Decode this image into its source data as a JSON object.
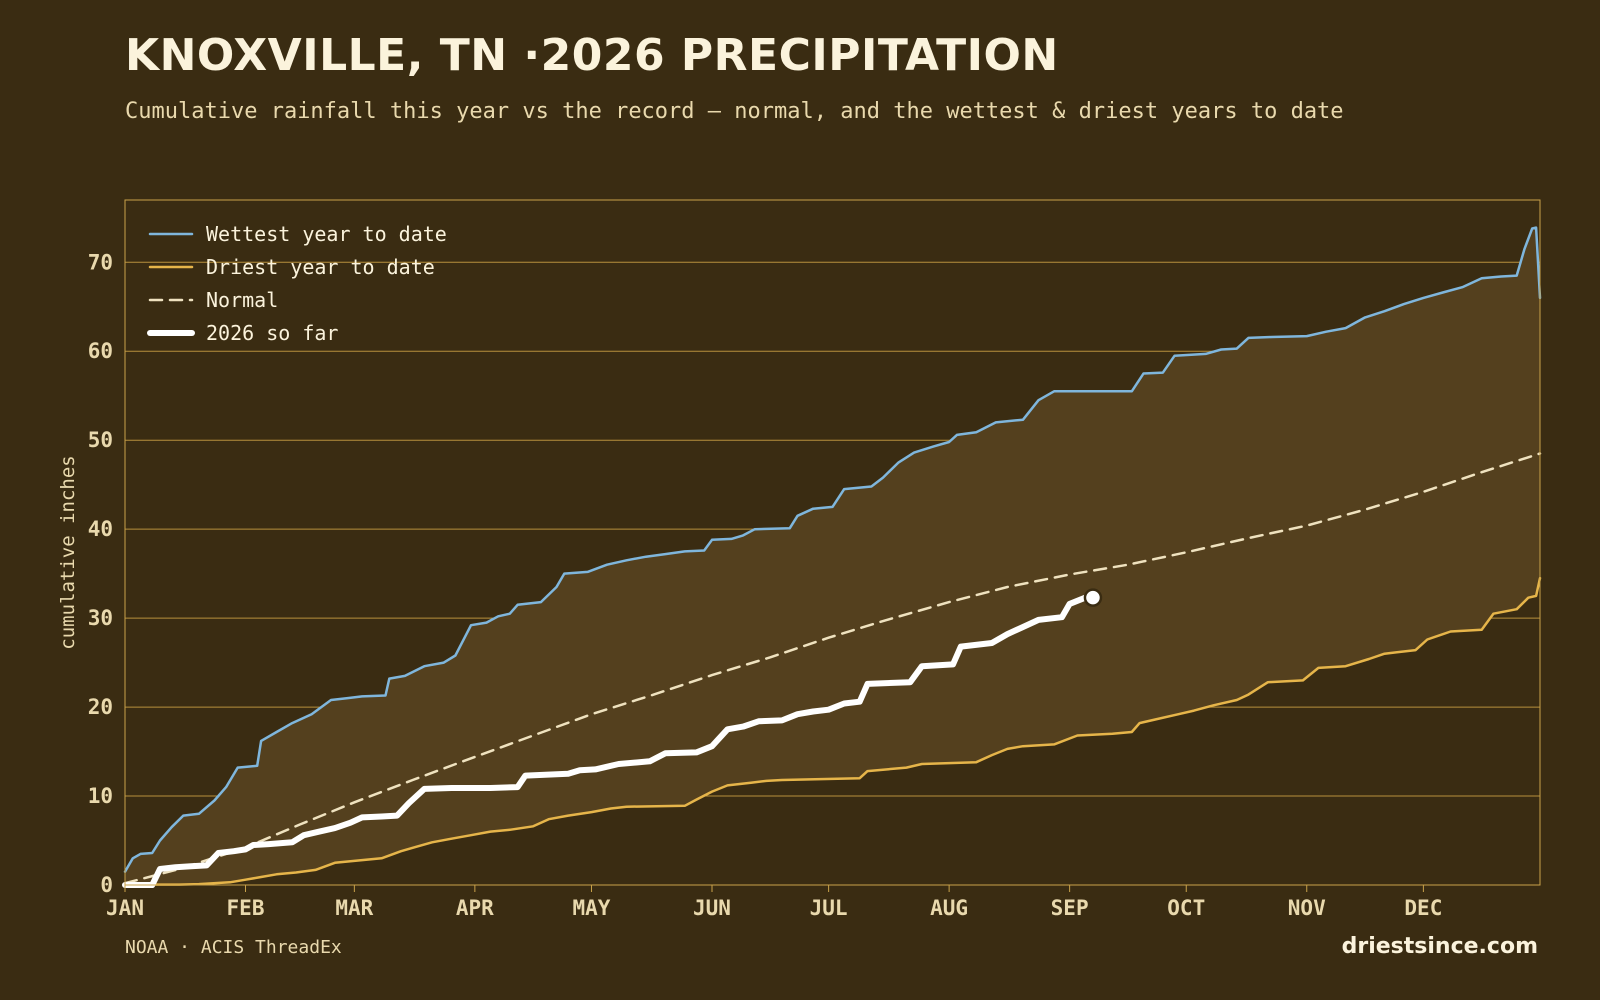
{
  "header": {
    "title": "KNOXVILLE, TN ·2026 PRECIPITATION",
    "subtitle": "Cumulative rainfall this year vs the record — normal, and the wettest & driest years to date"
  },
  "footer": {
    "source": "NOAA · ACIS ThreadEx",
    "brand": "driestsince.com"
  },
  "colors": {
    "background": "#3a2c12",
    "band_fill": "#54401e",
    "frame": "#c9a24a",
    "grid": "#b8903c",
    "wettest": "#7fb6dc",
    "driest": "#e6b54a",
    "normal": "#efe2bf",
    "current": "#ffffff"
  },
  "chart_data": {
    "type": "line",
    "xlabel": "",
    "ylabel": "cumulative inches",
    "x_unit": "day of year",
    "xlim": [
      1,
      365
    ],
    "ylim": [
      0,
      77
    ],
    "yticks": [
      0,
      10,
      20,
      30,
      40,
      50,
      60,
      70
    ],
    "months": [
      {
        "label": "JAN",
        "day": 1
      },
      {
        "label": "FEB",
        "day": 32
      },
      {
        "label": "MAR",
        "day": 60
      },
      {
        "label": "APR",
        "day": 91
      },
      {
        "label": "MAY",
        "day": 121
      },
      {
        "label": "JUN",
        "day": 152
      },
      {
        "label": "JUL",
        "day": 182
      },
      {
        "label": "AUG",
        "day": 213
      },
      {
        "label": "SEP",
        "day": 244
      },
      {
        "label": "OCT",
        "day": 274
      },
      {
        "label": "NOV",
        "day": 305
      },
      {
        "label": "DEC",
        "day": 335
      }
    ],
    "grid": true,
    "legend_position": "top-left",
    "series": [
      {
        "name": "Wettest year to date",
        "style": "solid",
        "points": [
          [
            1,
            1.5
          ],
          [
            3,
            3
          ],
          [
            5,
            3.5
          ],
          [
            8,
            3.6
          ],
          [
            10,
            5
          ],
          [
            13,
            6.5
          ],
          [
            16,
            7.8
          ],
          [
            20,
            8
          ],
          [
            24,
            9.5
          ],
          [
            27,
            11
          ],
          [
            30,
            13.2
          ],
          [
            35,
            13.4
          ],
          [
            36,
            16.2
          ],
          [
            40,
            17.2
          ],
          [
            44,
            18.2
          ],
          [
            49,
            19.2
          ],
          [
            54,
            20.8
          ],
          [
            58,
            21.0
          ],
          [
            62,
            21.2
          ],
          [
            68,
            21.3
          ],
          [
            69,
            23.2
          ],
          [
            73,
            23.5
          ],
          [
            78,
            24.6
          ],
          [
            83,
            25.0
          ],
          [
            86,
            25.8
          ],
          [
            90,
            29.2
          ],
          [
            94,
            29.5
          ],
          [
            97,
            30.2
          ],
          [
            100,
            30.5
          ],
          [
            102,
            31.5
          ],
          [
            108,
            31.8
          ],
          [
            112,
            33.5
          ],
          [
            114,
            35.0
          ],
          [
            120,
            35.2
          ],
          [
            125,
            36.0
          ],
          [
            130,
            36.5
          ],
          [
            135,
            36.9
          ],
          [
            140,
            37.2
          ],
          [
            145,
            37.5
          ],
          [
            150,
            37.6
          ],
          [
            152,
            38.8
          ],
          [
            157,
            38.9
          ],
          [
            160,
            39.3
          ],
          [
            163,
            40.0
          ],
          [
            172,
            40.1
          ],
          [
            174,
            41.5
          ],
          [
            178,
            42.3
          ],
          [
            183,
            42.5
          ],
          [
            186,
            44.5
          ],
          [
            193,
            44.8
          ],
          [
            196,
            45.8
          ],
          [
            200,
            47.5
          ],
          [
            204,
            48.6
          ],
          [
            209,
            49.3
          ],
          [
            213,
            49.8
          ],
          [
            215,
            50.6
          ],
          [
            220,
            50.9
          ],
          [
            225,
            52.0
          ],
          [
            232,
            52.3
          ],
          [
            236,
            54.5
          ],
          [
            240,
            55.5
          ],
          [
            260,
            55.5
          ],
          [
            263,
            57.5
          ],
          [
            268,
            57.6
          ],
          [
            271,
            59.5
          ],
          [
            279,
            59.7
          ],
          [
            283,
            60.2
          ],
          [
            287,
            60.3
          ],
          [
            290,
            61.5
          ],
          [
            296,
            61.6
          ],
          [
            305,
            61.7
          ],
          [
            310,
            62.2
          ],
          [
            315,
            62.6
          ],
          [
            320,
            63.8
          ],
          [
            325,
            64.5
          ],
          [
            330,
            65.3
          ],
          [
            335,
            66.0
          ],
          [
            340,
            66.6
          ],
          [
            345,
            67.2
          ],
          [
            350,
            68.2
          ],
          [
            355,
            68.4
          ],
          [
            359,
            68.5
          ],
          [
            361,
            71.5
          ],
          [
            363,
            73.8
          ],
          [
            364,
            73.9
          ],
          [
            365,
            66.0
          ]
        ]
      },
      {
        "name": "Driest year to date",
        "style": "solid",
        "points": [
          [
            1,
            0.05
          ],
          [
            15,
            0.05
          ],
          [
            20,
            0.1
          ],
          [
            28,
            0.3
          ],
          [
            32,
            0.6
          ],
          [
            36,
            0.9
          ],
          [
            40,
            1.2
          ],
          [
            45,
            1.4
          ],
          [
            50,
            1.7
          ],
          [
            55,
            2.5
          ],
          [
            62,
            2.8
          ],
          [
            67,
            3.0
          ],
          [
            72,
            3.8
          ],
          [
            76,
            4.3
          ],
          [
            80,
            4.8
          ],
          [
            85,
            5.2
          ],
          [
            90,
            5.6
          ],
          [
            95,
            6.0
          ],
          [
            100,
            6.2
          ],
          [
            106,
            6.6
          ],
          [
            110,
            7.4
          ],
          [
            115,
            7.8
          ],
          [
            121,
            8.2
          ],
          [
            126,
            8.6
          ],
          [
            130,
            8.8
          ],
          [
            145,
            8.9
          ],
          [
            148,
            9.6
          ],
          [
            152,
            10.5
          ],
          [
            156,
            11.2
          ],
          [
            162,
            11.5
          ],
          [
            166,
            11.7
          ],
          [
            170,
            11.8
          ],
          [
            180,
            11.9
          ],
          [
            190,
            12.0
          ],
          [
            192,
            12.8
          ],
          [
            202,
            13.2
          ],
          [
            206,
            13.6
          ],
          [
            220,
            13.8
          ],
          [
            224,
            14.6
          ],
          [
            228,
            15.3
          ],
          [
            232,
            15.6
          ],
          [
            240,
            15.8
          ],
          [
            246,
            16.8
          ],
          [
            255,
            17.0
          ],
          [
            260,
            17.2
          ],
          [
            262,
            18.2
          ],
          [
            266,
            18.6
          ],
          [
            272,
            19.2
          ],
          [
            276,
            19.6
          ],
          [
            281,
            20.2
          ],
          [
            287,
            20.8
          ],
          [
            290,
            21.4
          ],
          [
            295,
            22.8
          ],
          [
            304,
            23.0
          ],
          [
            308,
            24.4
          ],
          [
            315,
            24.6
          ],
          [
            321,
            25.4
          ],
          [
            325,
            26.0
          ],
          [
            333,
            26.4
          ],
          [
            336,
            27.6
          ],
          [
            342,
            28.5
          ],
          [
            350,
            28.7
          ],
          [
            353,
            30.5
          ],
          [
            359,
            31.0
          ],
          [
            362,
            32.3
          ],
          [
            364,
            32.5
          ],
          [
            365,
            34.5
          ]
        ]
      },
      {
        "name": "Normal",
        "style": "dashed",
        "points": [
          [
            1,
            0.2
          ],
          [
            15,
            1.8
          ],
          [
            32,
            4.2
          ],
          [
            46,
            6.8
          ],
          [
            60,
            9.3
          ],
          [
            75,
            11.8
          ],
          [
            91,
            14.4
          ],
          [
            106,
            16.8
          ],
          [
            121,
            19.2
          ],
          [
            137,
            21.4
          ],
          [
            152,
            23.6
          ],
          [
            167,
            25.6
          ],
          [
            182,
            27.8
          ],
          [
            197,
            29.8
          ],
          [
            213,
            31.8
          ],
          [
            228,
            33.5
          ],
          [
            244,
            34.9
          ],
          [
            259,
            36.0
          ],
          [
            274,
            37.4
          ],
          [
            290,
            39.0
          ],
          [
            305,
            40.4
          ],
          [
            320,
            42.2
          ],
          [
            335,
            44.2
          ],
          [
            350,
            46.4
          ],
          [
            365,
            48.5
          ]
        ]
      },
      {
        "name": "2026 so far",
        "style": "thick",
        "points": [
          [
            1,
            0
          ],
          [
            8,
            0
          ],
          [
            10,
            1.8
          ],
          [
            14,
            2.0
          ],
          [
            18,
            2.1
          ],
          [
            22,
            2.2
          ],
          [
            25,
            3.6
          ],
          [
            29,
            3.8
          ],
          [
            32,
            4.0
          ],
          [
            34,
            4.5
          ],
          [
            38,
            4.6
          ],
          [
            44,
            4.8
          ],
          [
            47,
            5.6
          ],
          [
            51,
            6.0
          ],
          [
            55,
            6.4
          ],
          [
            59,
            7.0
          ],
          [
            62,
            7.6
          ],
          [
            67,
            7.7
          ],
          [
            71,
            7.8
          ],
          [
            74,
            9.2
          ],
          [
            78,
            10.8
          ],
          [
            85,
            10.9
          ],
          [
            95,
            10.9
          ],
          [
            102,
            11.0
          ],
          [
            104,
            12.3
          ],
          [
            115,
            12.5
          ],
          [
            118,
            12.9
          ],
          [
            122,
            13.0
          ],
          [
            128,
            13.6
          ],
          [
            136,
            13.9
          ],
          [
            140,
            14.8
          ],
          [
            148,
            14.9
          ],
          [
            152,
            15.6
          ],
          [
            156,
            17.5
          ],
          [
            160,
            17.8
          ],
          [
            164,
            18.4
          ],
          [
            170,
            18.5
          ],
          [
            174,
            19.2
          ],
          [
            178,
            19.5
          ],
          [
            182,
            19.7
          ],
          [
            186,
            20.4
          ],
          [
            190,
            20.6
          ],
          [
            192,
            22.6
          ],
          [
            203,
            22.8
          ],
          [
            206,
            24.6
          ],
          [
            214,
            24.8
          ],
          [
            216,
            26.8
          ],
          [
            224,
            27.2
          ],
          [
            228,
            28.2
          ],
          [
            232,
            29.0
          ],
          [
            236,
            29.8
          ],
          [
            242,
            30.1
          ],
          [
            244,
            31.6
          ],
          [
            248,
            32.3
          ]
        ]
      }
    ],
    "current_marker": {
      "x": 250,
      "y": 32.3
    }
  }
}
